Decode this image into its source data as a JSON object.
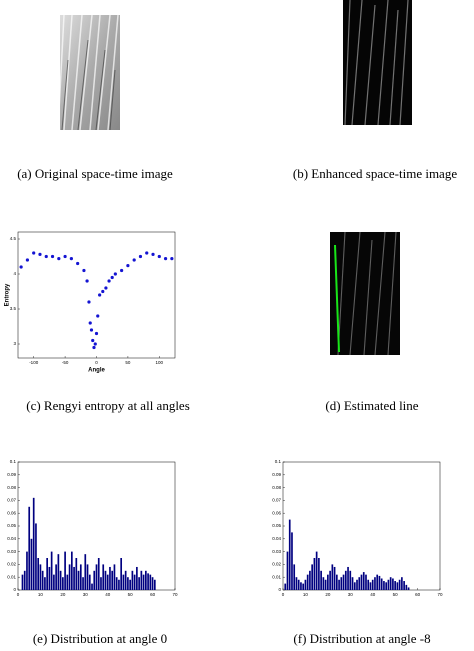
{
  "captions": [
    "(a) Original space-time image",
    "(b) Enhanced space-time image",
    "(c) Rengyi entropy at all angles",
    "(d) Estimated line",
    "(e) Distribution at angle 0",
    "(f) Distribution at angle -8"
  ],
  "chart_data": [
    {
      "type": "scatter",
      "x_label": "Angle",
      "y_label": "Entropy",
      "color": "#1414d2",
      "x": [
        -120,
        -110,
        -100,
        -90,
        -80,
        -70,
        -60,
        -50,
        -40,
        -30,
        -20,
        -15,
        -12,
        -10,
        -8,
        -6,
        -4,
        -2,
        0,
        2,
        5,
        10,
        15,
        20,
        25,
        30,
        40,
        50,
        60,
        70,
        80,
        90,
        100,
        110,
        120
      ],
      "values": [
        4.1,
        4.2,
        4.3,
        4.28,
        4.25,
        4.25,
        4.22,
        4.25,
        4.22,
        4.15,
        4.05,
        3.9,
        3.6,
        3.3,
        3.2,
        3.05,
        2.95,
        3.0,
        3.15,
        3.4,
        3.7,
        3.75,
        3.8,
        3.9,
        3.95,
        4.0,
        4.05,
        4.12,
        4.2,
        4.25,
        4.3,
        4.28,
        4.25,
        4.22,
        4.22
      ],
      "xlim": [
        -125,
        125
      ],
      "xticks": [
        -100,
        -50,
        0,
        50,
        100
      ],
      "ylim": [
        2.8,
        4.6
      ],
      "yticks": [
        3,
        3.5,
        4,
        4.5
      ]
    },
    {
      "type": "bar",
      "color": "#000080",
      "x": [
        2,
        3,
        4,
        5,
        6,
        7,
        8,
        9,
        10,
        11,
        12,
        13,
        14,
        15,
        16,
        17,
        18,
        19,
        20,
        21,
        22,
        23,
        24,
        25,
        26,
        27,
        28,
        29,
        30,
        31,
        32,
        33,
        34,
        35,
        36,
        37,
        38,
        39,
        40,
        41,
        42,
        43,
        44,
        45,
        46,
        47,
        48,
        49,
        50,
        51,
        52,
        53,
        54,
        55,
        56,
        57,
        58,
        59,
        60,
        61
      ],
      "values": [
        0.012,
        0.015,
        0.03,
        0.065,
        0.04,
        0.072,
        0.052,
        0.025,
        0.02,
        0.015,
        0.01,
        0.025,
        0.018,
        0.03,
        0.012,
        0.02,
        0.028,
        0.015,
        0.01,
        0.03,
        0.012,
        0.02,
        0.03,
        0.018,
        0.025,
        0.015,
        0.02,
        0.01,
        0.028,
        0.02,
        0.012,
        0.005,
        0.015,
        0.02,
        0.025,
        0.01,
        0.02,
        0.015,
        0.012,
        0.018,
        0.015,
        0.02,
        0.01,
        0.008,
        0.025,
        0.012,
        0.015,
        0.01,
        0.008,
        0.015,
        0.012,
        0.018,
        0.01,
        0.015,
        0.012,
        0.015,
        0.013,
        0.012,
        0.01,
        0.008
      ],
      "xlim": [
        0,
        70
      ],
      "xticks": [
        0,
        10,
        20,
        30,
        40,
        50,
        60,
        70
      ],
      "ylim": [
        0,
        0.1
      ],
      "yticks": [
        0,
        0.01,
        0.02,
        0.03,
        0.04,
        0.05,
        0.06,
        0.07,
        0.08,
        0.09,
        0.1
      ]
    },
    {
      "type": "bar",
      "color": "#000080",
      "x": [
        1,
        2,
        3,
        4,
        5,
        6,
        7,
        8,
        9,
        10,
        11,
        12,
        13,
        14,
        15,
        16,
        17,
        18,
        19,
        20,
        21,
        22,
        23,
        24,
        25,
        26,
        27,
        28,
        29,
        30,
        31,
        32,
        33,
        34,
        35,
        36,
        37,
        38,
        39,
        40,
        41,
        42,
        43,
        44,
        45,
        46,
        47,
        48,
        49,
        50,
        51,
        52,
        53,
        54,
        55,
        56
      ],
      "values": [
        0.005,
        0.03,
        0.055,
        0.045,
        0.02,
        0.01,
        0.008,
        0.006,
        0.005,
        0.008,
        0.012,
        0.015,
        0.02,
        0.025,
        0.03,
        0.025,
        0.015,
        0.01,
        0.008,
        0.012,
        0.015,
        0.02,
        0.018,
        0.012,
        0.008,
        0.01,
        0.012,
        0.015,
        0.018,
        0.015,
        0.01,
        0.006,
        0.008,
        0.01,
        0.012,
        0.014,
        0.012,
        0.008,
        0.006,
        0.008,
        0.01,
        0.012,
        0.011,
        0.009,
        0.007,
        0.006,
        0.008,
        0.01,
        0.009,
        0.007,
        0.006,
        0.008,
        0.01,
        0.007,
        0.004,
        0.002
      ],
      "xlim": [
        0,
        70
      ],
      "xticks": [
        0,
        10,
        20,
        30,
        40,
        50,
        60,
        70
      ],
      "ylim": [
        0,
        0.1
      ],
      "yticks": [
        0,
        0.01,
        0.02,
        0.03,
        0.04,
        0.05,
        0.06,
        0.07,
        0.08,
        0.09,
        0.1
      ]
    }
  ]
}
